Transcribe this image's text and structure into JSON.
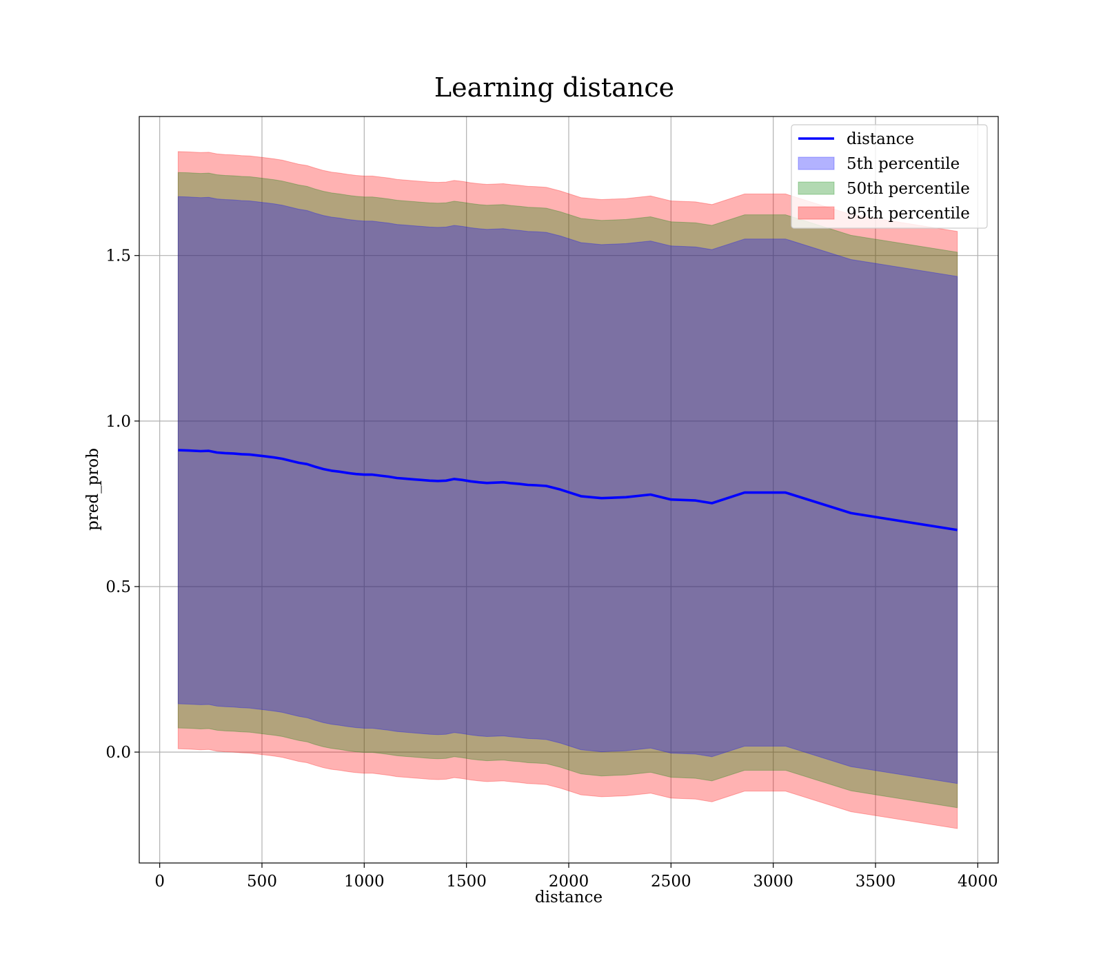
{
  "chart_data": {
    "type": "line",
    "title": "Learning distance",
    "xlabel": "distance",
    "ylabel": "pred_prob",
    "xlim": [
      -100,
      4100
    ],
    "ylim": [
      -0.335,
      1.92
    ],
    "xticks": [
      0,
      500,
      1000,
      1500,
      2000,
      2500,
      3000,
      3500,
      4000
    ],
    "xtick_labels": [
      "0",
      "500",
      "1000",
      "1500",
      "2000",
      "2500",
      "3000",
      "3500",
      "4000"
    ],
    "yticks": [
      0.0,
      0.5,
      1.0,
      1.5
    ],
    "ytick_labels": [
      "0.0",
      "0.5",
      "1.0",
      "1.5"
    ],
    "grid": true,
    "legend_position": "top-right",
    "x": [
      90,
      140,
      200,
      240,
      280,
      320,
      360,
      400,
      440,
      480,
      520,
      560,
      600,
      640,
      680,
      720,
      760,
      800,
      840,
      880,
      920,
      960,
      1000,
      1040,
      1080,
      1120,
      1160,
      1200,
      1240,
      1280,
      1320,
      1360,
      1400,
      1440,
      1480,
      1520,
      1560,
      1600,
      1640,
      1680,
      1720,
      1760,
      1800,
      1840,
      1890,
      1960,
      2060,
      2160,
      2280,
      2400,
      2500,
      2620,
      2700,
      2860,
      3060,
      3380,
      3900
    ],
    "series": [
      {
        "name": "distance",
        "kind": "line",
        "color": "#0000ff",
        "values": [
          0.912,
          0.911,
          0.909,
          0.91,
          0.905,
          0.903,
          0.902,
          0.9,
          0.899,
          0.896,
          0.893,
          0.89,
          0.886,
          0.88,
          0.874,
          0.87,
          0.862,
          0.855,
          0.85,
          0.847,
          0.843,
          0.84,
          0.838,
          0.838,
          0.835,
          0.832,
          0.828,
          0.826,
          0.824,
          0.822,
          0.82,
          0.819,
          0.82,
          0.825,
          0.822,
          0.818,
          0.815,
          0.813,
          0.814,
          0.815,
          0.812,
          0.81,
          0.807,
          0.806,
          0.804,
          0.793,
          0.773,
          0.767,
          0.77,
          0.778,
          0.763,
          0.76,
          0.752,
          0.784,
          0.784,
          0.722,
          0.671
        ]
      },
      {
        "name": "5th percentile",
        "kind": "band",
        "color": "#0000ff",
        "lower": [
          0.146,
          0.145,
          0.143,
          0.144,
          0.139,
          0.137,
          0.136,
          0.134,
          0.133,
          0.13,
          0.127,
          0.124,
          0.12,
          0.114,
          0.108,
          0.104,
          0.096,
          0.089,
          0.084,
          0.081,
          0.077,
          0.074,
          0.072,
          0.072,
          0.069,
          0.066,
          0.062,
          0.06,
          0.058,
          0.056,
          0.054,
          0.053,
          0.054,
          0.059,
          0.056,
          0.052,
          0.049,
          0.047,
          0.048,
          0.049,
          0.046,
          0.044,
          0.041,
          0.04,
          0.038,
          0.027,
          0.007,
          0.001,
          0.004,
          0.012,
          -0.003,
          -0.006,
          -0.014,
          0.018,
          0.018,
          -0.044,
          -0.095
        ],
        "upper": [
          1.678,
          1.677,
          1.675,
          1.676,
          1.671,
          1.669,
          1.668,
          1.666,
          1.665,
          1.662,
          1.659,
          1.656,
          1.652,
          1.646,
          1.64,
          1.636,
          1.628,
          1.621,
          1.616,
          1.613,
          1.609,
          1.606,
          1.604,
          1.604,
          1.601,
          1.598,
          1.594,
          1.592,
          1.59,
          1.588,
          1.586,
          1.585,
          1.586,
          1.591,
          1.588,
          1.584,
          1.581,
          1.579,
          1.58,
          1.581,
          1.578,
          1.576,
          1.573,
          1.572,
          1.57,
          1.559,
          1.539,
          1.533,
          1.536,
          1.544,
          1.529,
          1.526,
          1.518,
          1.55,
          1.55,
          1.488,
          1.437
        ]
      },
      {
        "name": "50th percentile",
        "kind": "band",
        "color": "#008000",
        "lower": [
          0.073,
          0.072,
          0.07,
          0.071,
          0.066,
          0.064,
          0.063,
          0.061,
          0.06,
          0.057,
          0.054,
          0.051,
          0.047,
          0.041,
          0.035,
          0.031,
          0.023,
          0.016,
          0.011,
          0.008,
          0.004,
          0.001,
          -0.001,
          -0.001,
          -0.004,
          -0.007,
          -0.011,
          -0.013,
          -0.015,
          -0.017,
          -0.019,
          -0.02,
          -0.019,
          -0.014,
          -0.017,
          -0.021,
          -0.024,
          -0.026,
          -0.025,
          -0.024,
          -0.027,
          -0.029,
          -0.032,
          -0.033,
          -0.035,
          -0.046,
          -0.066,
          -0.072,
          -0.069,
          -0.061,
          -0.076,
          -0.079,
          -0.087,
          -0.055,
          -0.055,
          -0.117,
          -0.168
        ],
        "upper": [
          1.751,
          1.75,
          1.748,
          1.749,
          1.744,
          1.742,
          1.741,
          1.739,
          1.738,
          1.735,
          1.732,
          1.729,
          1.725,
          1.719,
          1.713,
          1.709,
          1.701,
          1.694,
          1.689,
          1.686,
          1.682,
          1.679,
          1.677,
          1.677,
          1.674,
          1.671,
          1.667,
          1.665,
          1.663,
          1.661,
          1.659,
          1.658,
          1.659,
          1.664,
          1.661,
          1.657,
          1.654,
          1.652,
          1.653,
          1.654,
          1.651,
          1.649,
          1.646,
          1.645,
          1.643,
          1.632,
          1.612,
          1.606,
          1.609,
          1.617,
          1.602,
          1.599,
          1.591,
          1.623,
          1.623,
          1.561,
          1.51
        ]
      },
      {
        "name": "95th percentile",
        "kind": "band",
        "color": "#ff0000",
        "lower": [
          0.01,
          0.009,
          0.007,
          0.008,
          0.003,
          0.001,
          0.0,
          -0.002,
          -0.003,
          -0.006,
          -0.009,
          -0.012,
          -0.016,
          -0.022,
          -0.028,
          -0.032,
          -0.04,
          -0.047,
          -0.052,
          -0.055,
          -0.059,
          -0.062,
          -0.064,
          -0.064,
          -0.067,
          -0.07,
          -0.074,
          -0.076,
          -0.078,
          -0.08,
          -0.082,
          -0.083,
          -0.082,
          -0.077,
          -0.08,
          -0.084,
          -0.087,
          -0.089,
          -0.088,
          -0.087,
          -0.09,
          -0.092,
          -0.095,
          -0.096,
          -0.098,
          -0.109,
          -0.129,
          -0.135,
          -0.132,
          -0.124,
          -0.139,
          -0.142,
          -0.15,
          -0.118,
          -0.118,
          -0.18,
          -0.231
        ],
        "upper": [
          1.814,
          1.813,
          1.811,
          1.812,
          1.807,
          1.805,
          1.804,
          1.802,
          1.801,
          1.798,
          1.795,
          1.792,
          1.788,
          1.782,
          1.776,
          1.772,
          1.764,
          1.757,
          1.752,
          1.749,
          1.745,
          1.742,
          1.74,
          1.74,
          1.737,
          1.734,
          1.73,
          1.728,
          1.726,
          1.724,
          1.722,
          1.721,
          1.722,
          1.727,
          1.724,
          1.72,
          1.717,
          1.715,
          1.716,
          1.717,
          1.714,
          1.712,
          1.709,
          1.708,
          1.706,
          1.695,
          1.675,
          1.669,
          1.672,
          1.68,
          1.665,
          1.662,
          1.654,
          1.686,
          1.686,
          1.624,
          1.573
        ]
      }
    ]
  }
}
